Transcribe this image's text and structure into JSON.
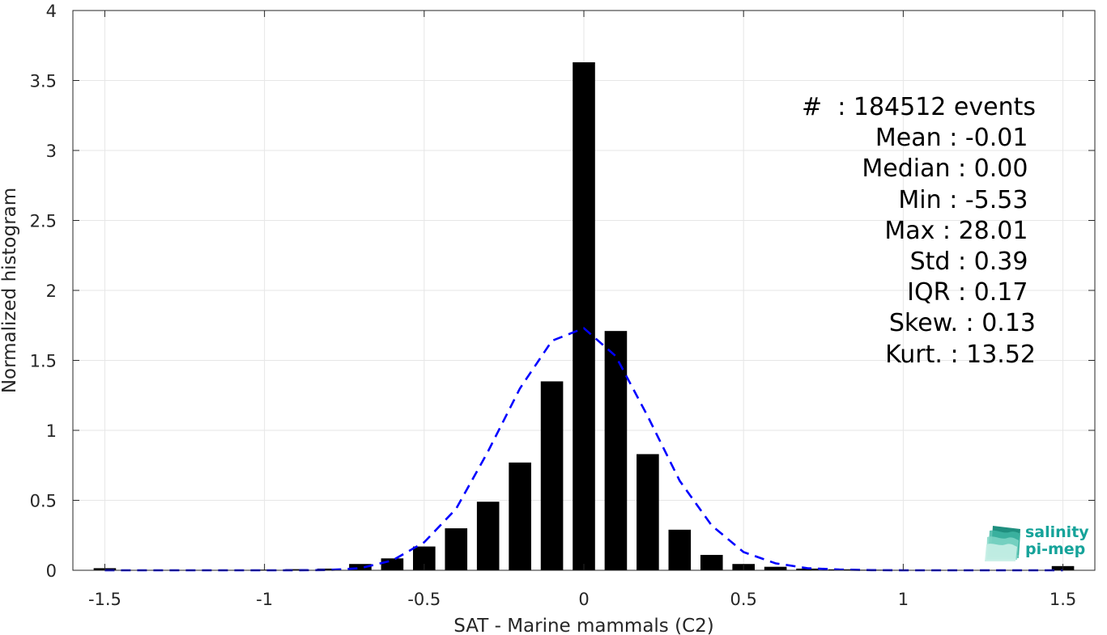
{
  "chart_data": {
    "type": "bar",
    "xlabel": "SAT - Marine mammals (C2)",
    "ylabel": "Normalized histogram",
    "xlim": [
      -1.6,
      1.6
    ],
    "ylim": [
      0,
      4
    ],
    "xticks": [
      "-1.5",
      "-1",
      "-0.5",
      "0",
      "0.5",
      "1",
      "1.5"
    ],
    "yticks": [
      "0",
      "0.5",
      "1",
      "1.5",
      "2",
      "2.5",
      "3",
      "3.5",
      "4"
    ],
    "grid": true,
    "bin_width": 0.1,
    "bars": {
      "x": [
        -1.5,
        -1.4,
        -1.3,
        -1.2,
        -1.1,
        -1.0,
        -0.9,
        -0.8,
        -0.7,
        -0.6,
        -0.5,
        -0.4,
        -0.3,
        -0.2,
        -0.1,
        0.0,
        0.1,
        0.2,
        0.3,
        0.4,
        0.5,
        0.6,
        0.7,
        0.8,
        0.9,
        1.0,
        1.1,
        1.2,
        1.3,
        1.4,
        1.5
      ],
      "values": [
        0.015,
        0.002,
        0.002,
        0.002,
        0.003,
        0.005,
        0.008,
        0.012,
        0.045,
        0.085,
        0.17,
        0.3,
        0.49,
        0.77,
        1.35,
        3.63,
        1.71,
        0.83,
        0.29,
        0.11,
        0.045,
        0.025,
        0.012,
        0.007,
        0.004,
        0.003,
        0.002,
        0.002,
        0.002,
        0.002,
        0.03
      ],
      "color": "#000000"
    },
    "fit_curve": {
      "style": "dashed",
      "color": "#0000ff",
      "x": [
        -1.5,
        -1.4,
        -1.3,
        -1.2,
        -1.1,
        -1.0,
        -0.9,
        -0.8,
        -0.7,
        -0.6,
        -0.5,
        -0.4,
        -0.3,
        -0.2,
        -0.1,
        0.0,
        0.1,
        0.2,
        0.3,
        0.4,
        0.5,
        0.6,
        0.7,
        0.8,
        0.9,
        1.0,
        1.1,
        1.2,
        1.3,
        1.4,
        1.5
      ],
      "y": [
        0.0,
        0.0,
        0.0,
        0.0,
        0.0,
        0.0,
        0.0,
        0.002,
        0.015,
        0.07,
        0.2,
        0.44,
        0.85,
        1.3,
        1.64,
        1.73,
        1.53,
        1.1,
        0.64,
        0.32,
        0.13,
        0.05,
        0.015,
        0.005,
        0.001,
        0.0,
        0.0,
        0.0,
        0.0,
        0.0,
        0.0
      ]
    }
  },
  "stats": [
    "#  : 184512 events",
    "Mean : -0.01 ",
    "Median : 0.00 ",
    "Min : -5.53 ",
    "Max : 28.01 ",
    "Std : 0.39 ",
    "IQR : 0.17 ",
    "Skew. : 0.13",
    "Kurt. : 13.52"
  ],
  "logo": {
    "line1": "salinity",
    "line2": "pi-mep",
    "color": "#16a39a"
  }
}
